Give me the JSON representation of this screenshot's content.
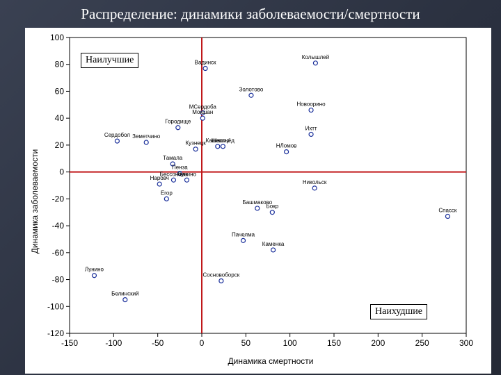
{
  "page": {
    "title": "Распределение: динамики заболеваемости/смертности"
  },
  "chart_data": {
    "type": "scatter",
    "xlabel": "Динамика смертности",
    "ylabel": "Динамика заболеваемости",
    "xlim": [
      -150,
      300
    ],
    "ylim": [
      -120,
      100
    ],
    "xticks": [
      -150,
      -100,
      -50,
      0,
      50,
      100,
      150,
      200,
      250,
      300
    ],
    "yticks": [
      100,
      80,
      60,
      40,
      20,
      0,
      -20,
      -40,
      -60,
      -80,
      -100,
      -120
    ],
    "grid": false,
    "annotations": {
      "best": "Наилучшие",
      "worst": "Наихудшие"
    },
    "reference_lines": {
      "x": 0,
      "y": 0,
      "color": "#c0181a"
    },
    "marker_color": "#1a2f9a",
    "points": [
      {
        "label": "Вадинск",
        "x": 4,
        "y": 77
      },
      {
        "label": "Колышлей",
        "x": 129,
        "y": 81
      },
      {
        "label": "Золотово",
        "x": 56,
        "y": 57
      },
      {
        "label": "МСердоба",
        "x": 1,
        "y": 44
      },
      {
        "label": "Мокшан",
        "x": 1,
        "y": 40
      },
      {
        "label": "Новоорино",
        "x": 124,
        "y": 46
      },
      {
        "label": "Городище",
        "x": -27,
        "y": 33
      },
      {
        "label": "Ихтт",
        "x": 124,
        "y": 28
      },
      {
        "label": "Сердобол",
        "x": -96,
        "y": 23
      },
      {
        "label": "Земетчино",
        "x": -63,
        "y": 22
      },
      {
        "label": "Камешир",
        "x": 18,
        "y": 19
      },
      {
        "label": "Шаптьёд",
        "x": 24,
        "y": 19
      },
      {
        "label": "Кузнецк",
        "x": -7,
        "y": 17
      },
      {
        "label": "НЛомов",
        "x": 96,
        "y": 15
      },
      {
        "label": "Тамала",
        "x": -33,
        "y": 6
      },
      {
        "label": "Пенза",
        "x": -25,
        "y": -1
      },
      {
        "label": "Бессоново",
        "x": -32,
        "y": -6
      },
      {
        "label": "Наровч",
        "x": -48,
        "y": -9
      },
      {
        "label": "Лунино",
        "x": -17,
        "y": -6
      },
      {
        "label": "Никольск",
        "x": 128,
        "y": -12
      },
      {
        "label": "Егор",
        "x": -40,
        "y": -20
      },
      {
        "label": "Башмаково",
        "x": 63,
        "y": -27
      },
      {
        "label": "Бокр",
        "x": 80,
        "y": -30
      },
      {
        "label": "Спасск",
        "x": 279,
        "y": -33
      },
      {
        "label": "Пачелма",
        "x": 47,
        "y": -51
      },
      {
        "label": "Каменка",
        "x": 81,
        "y": -58
      },
      {
        "label": "Лунино",
        "x": -122,
        "y": -77
      },
      {
        "label": "Сосновоборск",
        "x": 22,
        "y": -81
      },
      {
        "label": "Белинский",
        "x": -87,
        "y": -95
      }
    ]
  }
}
